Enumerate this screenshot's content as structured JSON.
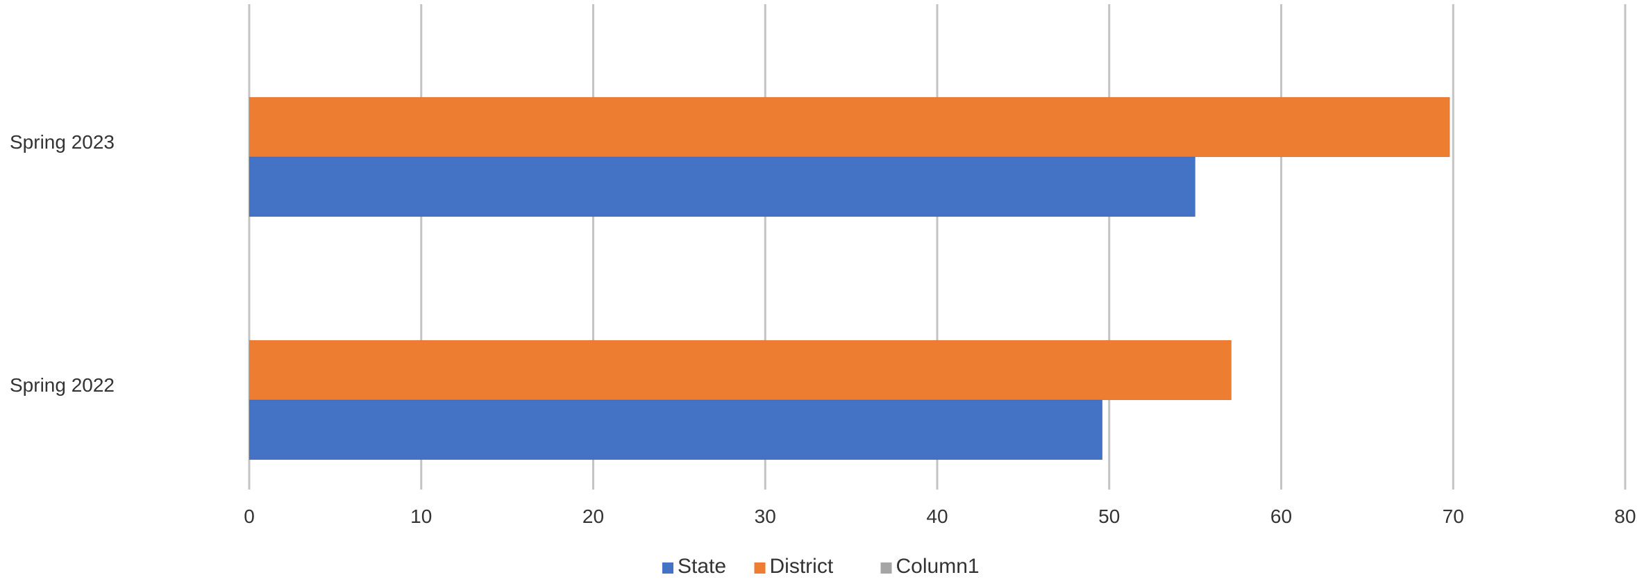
{
  "chart_data": {
    "type": "bar",
    "orientation": "horizontal",
    "categories": [
      "Spring 2023",
      "Spring 2022"
    ],
    "series": [
      {
        "name": "District",
        "values": [
          69.8,
          57.1
        ],
        "color": "#ED7D31"
      },
      {
        "name": "State",
        "values": [
          55.0,
          49.6
        ],
        "color": "#4472C4"
      }
    ],
    "legend": [
      {
        "name": "State",
        "color": "#4472C4"
      },
      {
        "name": "District",
        "color": "#ED7D31"
      },
      {
        "name": "Column1",
        "color": "#A5A5A5"
      }
    ],
    "x_ticks": [
      "0",
      "10",
      "20",
      "30",
      "40",
      "50",
      "60",
      "70",
      "80"
    ],
    "xlim": [
      0,
      80
    ],
    "grid": "vertical",
    "legend_position": "bottom",
    "title": "",
    "xlabel": "",
    "ylabel": ""
  }
}
